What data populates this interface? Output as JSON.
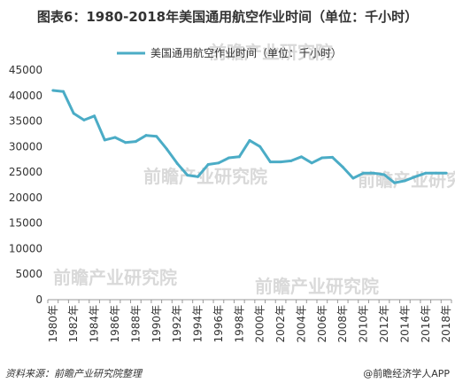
{
  "chart_data": {
    "type": "line",
    "title": "图表6：1980-2018年美国通用航空作业时间（单位：千小时）",
    "xlabel": "",
    "ylabel": "",
    "ylim": [
      0,
      45000
    ],
    "yticks": [
      "0",
      "5000",
      "10000",
      "15000",
      "20000",
      "25000",
      "30000",
      "35000",
      "40000",
      "45000"
    ],
    "categories": [
      "1980年",
      "1981年",
      "1982年",
      "1983年",
      "1984年",
      "1985年",
      "1986年",
      "1987年",
      "1988年",
      "1989年",
      "1990年",
      "1991年",
      "1992年",
      "1993年",
      "1994年",
      "1995年",
      "1996年",
      "1997年",
      "1998年",
      "1999年",
      "2000年",
      "2001年",
      "2002年",
      "2003年",
      "2004年",
      "2005年",
      "2006年",
      "2007年",
      "2008年",
      "2009年",
      "2010年",
      "2011年",
      "2012年",
      "2013年",
      "2014年",
      "2015年",
      "2016年",
      "2017年",
      "2018年"
    ],
    "shown_tick_labels": [
      "1980年",
      "1982年",
      "1984年",
      "1986年",
      "1988年",
      "1990年",
      "1992年",
      "1994年",
      "1996年",
      "1998年",
      "2000年",
      "2002年",
      "2004年",
      "2006年",
      "2008年",
      "2010年",
      "2012年",
      "2014年",
      "2016年",
      "2018年"
    ],
    "series": [
      {
        "name": "美国通用航空作业时间（单位：千小时）",
        "color": "#4bacc6",
        "values": [
          41000,
          40800,
          36500,
          35200,
          36000,
          31300,
          31800,
          30800,
          31000,
          32200,
          32000,
          29500,
          26700,
          24400,
          24100,
          26500,
          26800,
          27800,
          28000,
          31200,
          30000,
          27000,
          27000,
          27200,
          28000,
          26800,
          27800,
          27900,
          26000,
          23800,
          24800,
          24800,
          24500,
          22900,
          23300,
          24100,
          24800,
          24800,
          24800
        ]
      }
    ],
    "legend_position": "top",
    "grid": false
  },
  "footer": {
    "source": "资料来源：前瞻产业研究院整理",
    "brand": "@前瞻经济学人APP"
  },
  "watermark": "前瞻产业研究院"
}
